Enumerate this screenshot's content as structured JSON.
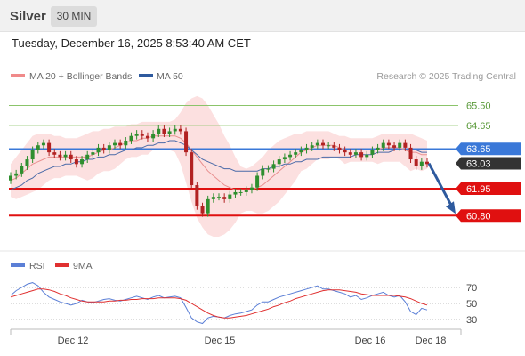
{
  "header": {
    "symbol": "Silver",
    "interval": "30 MIN",
    "datetime": "Tuesday, December 16, 2025 8:53:40 AM CET"
  },
  "legend": {
    "ma20": "MA 20 + Bollinger Bands",
    "ma50": "MA 50",
    "credit": "Research © 2025 Trading Central",
    "ma20_color": "#f08a8a",
    "ma50_color": "#2e5a9e"
  },
  "rsi_legend": {
    "rsi": "RSI",
    "ma9": "9MA",
    "rsi_color": "#5b7fd6",
    "ma9_color": "#e03030"
  },
  "x_axis_labels": [
    "Dec 12",
    "Dec 15",
    "Dec 16",
    "Dec 18"
  ],
  "rsi_axis_labels": [
    "70",
    "50",
    "30"
  ],
  "chart_data": [
    {
      "type": "candlestick",
      "title": "",
      "ylim": [
        59.9,
        66.2
      ],
      "levels": [
        {
          "label": "65.50",
          "value": 65.5,
          "color": "#8bc46a",
          "kind": "resistance"
        },
        {
          "label": "64.65",
          "value": 64.65,
          "color": "#8bc46a",
          "kind": "resistance"
        },
        {
          "label": "63.65",
          "value": 63.65,
          "color": "#3a78d8",
          "kind": "pivot"
        },
        {
          "label": "63.03",
          "value": 63.03,
          "color": "#333333",
          "kind": "last"
        },
        {
          "label": "61.95",
          "value": 61.95,
          "color": "#e01010",
          "kind": "support"
        },
        {
          "label": "60.80",
          "value": 60.8,
          "color": "#e01010",
          "kind": "support"
        }
      ],
      "forecast_arrow": {
        "from": 63.03,
        "to": 60.8,
        "color": "#2e5a9e"
      },
      "close": [
        62.5,
        62.6,
        62.9,
        63.2,
        63.6,
        63.8,
        63.9,
        63.5,
        63.4,
        63.3,
        63.4,
        63.2,
        63.0,
        63.2,
        63.4,
        63.5,
        63.7,
        63.6,
        63.8,
        63.9,
        63.8,
        64.0,
        64.2,
        64.3,
        64.2,
        64.1,
        64.3,
        64.5,
        64.3,
        64.4,
        64.5,
        64.4,
        63.5,
        62.1,
        61.2,
        60.9,
        61.5,
        61.6,
        61.6,
        61.5,
        61.7,
        61.8,
        61.8,
        61.9,
        62.0,
        62.5,
        62.8,
        62.8,
        63.0,
        63.2,
        63.3,
        63.4,
        63.5,
        63.6,
        63.7,
        63.8,
        63.9,
        63.8,
        63.8,
        63.7,
        63.6,
        63.5,
        63.4,
        63.5,
        63.3,
        63.4,
        63.6,
        63.7,
        63.9,
        63.8,
        63.7,
        63.9,
        63.7,
        63.2,
        62.9,
        63.1,
        63.0
      ],
      "open": [
        62.3,
        62.5,
        62.6,
        62.9,
        63.2,
        63.6,
        63.8,
        63.9,
        63.5,
        63.4,
        63.3,
        63.4,
        63.2,
        63.0,
        63.2,
        63.4,
        63.5,
        63.7,
        63.6,
        63.8,
        63.9,
        63.8,
        64.0,
        64.2,
        64.3,
        64.2,
        64.1,
        64.3,
        64.5,
        64.3,
        64.4,
        64.5,
        64.4,
        63.5,
        62.1,
        61.2,
        60.9,
        61.5,
        61.6,
        61.6,
        61.5,
        61.7,
        61.8,
        61.8,
        61.9,
        62.0,
        62.5,
        62.8,
        62.8,
        63.0,
        63.2,
        63.3,
        63.4,
        63.5,
        63.6,
        63.7,
        63.8,
        63.9,
        63.8,
        63.8,
        63.7,
        63.6,
        63.5,
        63.4,
        63.5,
        63.3,
        63.4,
        63.6,
        63.7,
        63.9,
        63.8,
        63.7,
        63.9,
        63.7,
        63.2,
        62.9,
        63.1
      ],
      "ma20": [
        62.3,
        62.4,
        62.6,
        62.8,
        63.0,
        63.1,
        63.2,
        63.3,
        63.3,
        63.3,
        63.3,
        63.3,
        63.3,
        63.3,
        63.3,
        63.4,
        63.5,
        63.6,
        63.6,
        63.7,
        63.8,
        63.9,
        64.0,
        64.0,
        64.1,
        64.1,
        64.2,
        64.2,
        64.2,
        64.2,
        64.2,
        64.1,
        63.9,
        63.6,
        63.3,
        63.0,
        62.7,
        62.5,
        62.3,
        62.1,
        62.0,
        61.9,
        61.9,
        61.9,
        61.9,
        62.0,
        62.1,
        62.3,
        62.5,
        62.7,
        62.9,
        63.1,
        63.3,
        63.5,
        63.6,
        63.7,
        63.8,
        63.8,
        63.8,
        63.8,
        63.7,
        63.6,
        63.6,
        63.6,
        63.6,
        63.6,
        63.6,
        63.6,
        63.7,
        63.7,
        63.7,
        63.7,
        63.6,
        63.5,
        63.5,
        63.4,
        63.4
      ],
      "ma50": [
        61.9,
        62.0,
        62.1,
        62.3,
        62.4,
        62.6,
        62.7,
        62.8,
        62.9,
        62.9,
        63.0,
        63.0,
        63.1,
        63.1,
        63.2,
        63.2,
        63.3,
        63.3,
        63.4,
        63.4,
        63.5,
        63.6,
        63.6,
        63.7,
        63.7,
        63.8,
        63.8,
        63.9,
        63.9,
        64.0,
        64.0,
        63.9,
        63.8,
        63.6,
        63.4,
        63.2,
        63.1,
        63.0,
        62.9,
        62.8,
        62.8,
        62.7,
        62.7,
        62.7,
        62.7,
        62.7,
        62.8,
        62.8,
        62.9,
        62.9,
        63.0,
        63.0,
        63.1,
        63.1,
        63.2,
        63.2,
        63.2,
        63.3,
        63.3,
        63.3,
        63.3,
        63.3,
        63.3,
        63.4,
        63.4,
        63.4,
        63.4,
        63.5,
        63.5,
        63.5,
        63.6,
        63.6,
        63.6,
        63.6,
        63.6,
        63.5,
        63.5
      ],
      "bb_upper": [
        63.0,
        63.3,
        63.6,
        63.9,
        64.2,
        64.3,
        64.3,
        64.3,
        64.2,
        64.2,
        64.1,
        64.1,
        64.1,
        64.2,
        64.3,
        64.4,
        64.4,
        64.5,
        64.5,
        64.6,
        64.6,
        64.6,
        64.7,
        64.7,
        64.8,
        64.8,
        64.8,
        64.8,
        64.8,
        64.8,
        64.9,
        65.2,
        65.6,
        65.8,
        65.9,
        65.8,
        65.5,
        65.1,
        64.7,
        64.2,
        63.8,
        63.3,
        62.9,
        62.8,
        62.9,
        63.1,
        63.3,
        63.6,
        63.8,
        64.0,
        64.1,
        64.2,
        64.3,
        64.3,
        64.4,
        64.4,
        64.4,
        64.4,
        64.4,
        64.3,
        64.2,
        64.2,
        64.1,
        64.1,
        64.1,
        64.1,
        64.1,
        64.2,
        64.3,
        64.3,
        64.3,
        64.3,
        64.3,
        64.3,
        64.2,
        64.1,
        64.0
      ],
      "bb_lower": [
        61.6,
        61.5,
        61.6,
        61.7,
        61.8,
        61.9,
        62.1,
        62.3,
        62.4,
        62.4,
        62.5,
        62.5,
        62.5,
        62.4,
        62.3,
        62.4,
        62.6,
        62.7,
        62.7,
        62.8,
        63.0,
        63.2,
        63.3,
        63.3,
        63.4,
        63.4,
        63.6,
        63.6,
        63.6,
        63.6,
        63.5,
        63.0,
        62.2,
        61.4,
        60.7,
        60.3,
        60.0,
        59.9,
        59.9,
        60.0,
        60.2,
        60.5,
        60.9,
        61.0,
        61.0,
        60.9,
        60.9,
        61.0,
        61.2,
        61.4,
        61.7,
        62.0,
        62.3,
        62.7,
        62.8,
        63.0,
        63.2,
        63.2,
        63.2,
        63.3,
        63.2,
        63.0,
        63.1,
        63.1,
        63.1,
        63.1,
        63.1,
        63.0,
        63.1,
        63.1,
        63.1,
        63.1,
        62.9,
        62.7,
        62.8,
        62.7,
        62.8
      ]
    },
    {
      "type": "line",
      "title": "",
      "ylim": [
        20,
        80
      ],
      "gridlines": [
        70,
        50,
        30
      ],
      "series": [
        {
          "name": "RSI",
          "values": [
            60,
            66,
            70,
            74,
            76,
            72,
            64,
            58,
            55,
            52,
            50,
            48,
            50,
            54,
            52,
            51,
            53,
            55,
            56,
            54,
            53,
            55,
            57,
            59,
            57,
            55,
            58,
            60,
            57,
            58,
            59,
            57,
            45,
            32,
            27,
            25,
            32,
            34,
            33,
            32,
            35,
            37,
            38,
            40,
            42,
            48,
            52,
            52,
            55,
            58,
            60,
            62,
            64,
            66,
            68,
            70,
            72,
            68,
            68,
            66,
            64,
            62,
            58,
            60,
            55,
            57,
            60,
            62,
            64,
            60,
            58,
            60,
            52,
            40,
            36,
            44,
            42
          ]
        },
        {
          "name": "9MA",
          "values": [
            58,
            60,
            62,
            64,
            66,
            68,
            68,
            67,
            65,
            62,
            60,
            57,
            55,
            53,
            52,
            52,
            52,
            52,
            53,
            53,
            54,
            54,
            55,
            55,
            56,
            56,
            56,
            57,
            57,
            57,
            57,
            56,
            54,
            50,
            46,
            42,
            38,
            35,
            33,
            32,
            32,
            33,
            34,
            35,
            37,
            39,
            41,
            43,
            46,
            48,
            51,
            53,
            56,
            58,
            60,
            62,
            64,
            66,
            67,
            67,
            67,
            66,
            65,
            64,
            62,
            61,
            60,
            60,
            60,
            60,
            60,
            59,
            58,
            56,
            53,
            50,
            48
          ]
        }
      ]
    }
  ]
}
